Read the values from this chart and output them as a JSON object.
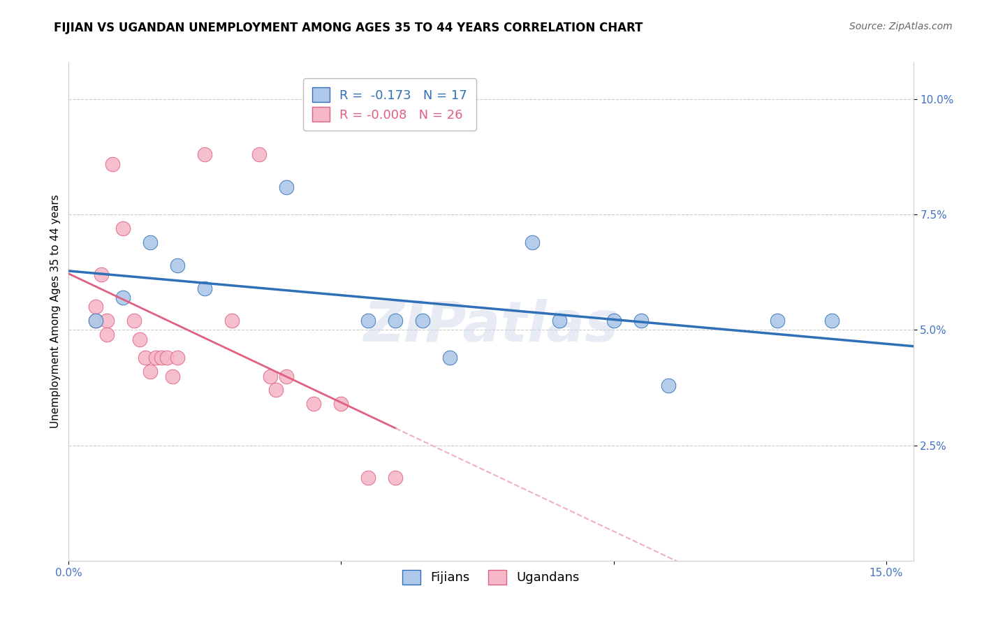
{
  "title": "FIJIAN VS UGANDAN UNEMPLOYMENT AMONG AGES 35 TO 44 YEARS CORRELATION CHART",
  "source": "Source: ZipAtlas.com",
  "ylabel": "Unemployment Among Ages 35 to 44 years",
  "xlim": [
    0.0,
    0.155
  ],
  "ylim": [
    0.0,
    0.108
  ],
  "fijian_color": "#adc8e8",
  "ugandan_color": "#f5b8c8",
  "fijian_line_color": "#3070b8",
  "ugandan_line_color": "#e06080",
  "ugandan_dashed_color": "#f0b0c0",
  "legend_fijian_r": "-0.173",
  "legend_fijian_n": "17",
  "legend_ugandan_r": "-0.008",
  "legend_ugandan_n": "26",
  "watermark": "ZIPatlas",
  "fijian_points": [
    [
      0.005,
      0.052
    ],
    [
      0.01,
      0.057
    ],
    [
      0.015,
      0.069
    ],
    [
      0.02,
      0.064
    ],
    [
      0.025,
      0.059
    ],
    [
      0.04,
      0.081
    ],
    [
      0.055,
      0.052
    ],
    [
      0.06,
      0.052
    ],
    [
      0.065,
      0.052
    ],
    [
      0.07,
      0.044
    ],
    [
      0.085,
      0.069
    ],
    [
      0.09,
      0.052
    ],
    [
      0.1,
      0.052
    ],
    [
      0.105,
      0.052
    ],
    [
      0.11,
      0.038
    ],
    [
      0.13,
      0.052
    ],
    [
      0.14,
      0.052
    ]
  ],
  "ugandan_points": [
    [
      0.005,
      0.052
    ],
    [
      0.005,
      0.055
    ],
    [
      0.006,
      0.062
    ],
    [
      0.007,
      0.052
    ],
    [
      0.007,
      0.049
    ],
    [
      0.008,
      0.086
    ],
    [
      0.01,
      0.072
    ],
    [
      0.012,
      0.052
    ],
    [
      0.013,
      0.048
    ],
    [
      0.014,
      0.044
    ],
    [
      0.015,
      0.041
    ],
    [
      0.016,
      0.044
    ],
    [
      0.017,
      0.044
    ],
    [
      0.018,
      0.044
    ],
    [
      0.019,
      0.04
    ],
    [
      0.02,
      0.044
    ],
    [
      0.025,
      0.088
    ],
    [
      0.03,
      0.052
    ],
    [
      0.035,
      0.088
    ],
    [
      0.037,
      0.04
    ],
    [
      0.038,
      0.037
    ],
    [
      0.04,
      0.04
    ],
    [
      0.045,
      0.034
    ],
    [
      0.05,
      0.034
    ],
    [
      0.055,
      0.018
    ],
    [
      0.06,
      0.018
    ]
  ],
  "grid_color": "#cccccc",
  "bg_color": "#ffffff",
  "tick_color": "#4472c4",
  "title_fontsize": 12,
  "axis_label_fontsize": 11,
  "tick_fontsize": 11,
  "legend_fontsize": 13,
  "source_fontsize": 10
}
